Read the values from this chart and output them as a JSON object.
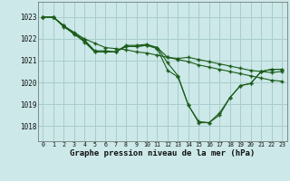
{
  "title": "Graphe pression niveau de la mer (hPa)",
  "bg_color": "#cce8e8",
  "grid_color": "#aacccc",
  "line_color": "#1a5c1a",
  "x_ticks": [
    0,
    1,
    2,
    3,
    4,
    5,
    6,
    7,
    8,
    9,
    10,
    11,
    12,
    13,
    14,
    15,
    16,
    17,
    18,
    19,
    20,
    21,
    22,
    23
  ],
  "y_ticks": [
    1018,
    1019,
    1020,
    1021,
    1022,
    1023
  ],
  "xlim": [
    -0.5,
    23.5
  ],
  "ylim": [
    1017.3,
    1023.7
  ],
  "line1_x": [
    0,
    1,
    2,
    3,
    4,
    5,
    6,
    7,
    8,
    9,
    10,
    11,
    12,
    13,
    14,
    15,
    16,
    17,
    18,
    19,
    20,
    21,
    22,
    23
  ],
  "line1_y": [
    1023.0,
    1023.0,
    1022.6,
    1022.3,
    1022.0,
    1021.8,
    1021.6,
    1021.55,
    1021.5,
    1021.4,
    1021.35,
    1021.25,
    1021.15,
    1021.05,
    1020.95,
    1020.8,
    1020.7,
    1020.6,
    1020.5,
    1020.4,
    1020.3,
    1020.2,
    1020.1,
    1020.05
  ],
  "line2_x": [
    0,
    1,
    2,
    3,
    4,
    5,
    6,
    7,
    8,
    9,
    10,
    11,
    12,
    13,
    14,
    15,
    16,
    17,
    18,
    19,
    20,
    21,
    22,
    23
  ],
  "line2_y": [
    1023.0,
    1023.0,
    1022.55,
    1022.25,
    1021.95,
    1021.45,
    1021.45,
    1021.4,
    1021.7,
    1021.7,
    1021.75,
    1021.6,
    1021.15,
    1021.1,
    1021.15,
    1021.05,
    1020.95,
    1020.85,
    1020.75,
    1020.65,
    1020.55,
    1020.5,
    1020.45,
    1020.5
  ],
  "line3_x": [
    0,
    1,
    2,
    3,
    4,
    5,
    6,
    7,
    8,
    9,
    10,
    11,
    12,
    13,
    14,
    15,
    16,
    17,
    18,
    19,
    20,
    21,
    22,
    23
  ],
  "line3_y": [
    1023.0,
    1023.0,
    1022.6,
    1022.25,
    1021.85,
    1021.4,
    1021.4,
    1021.4,
    1021.65,
    1021.65,
    1021.7,
    1021.6,
    1020.9,
    1020.3,
    1018.95,
    1018.2,
    1018.15,
    1018.5,
    1019.3,
    1019.85,
    1019.95,
    1020.5,
    1020.6,
    1020.6
  ],
  "line4_x": [
    0,
    1,
    2,
    3,
    4,
    5,
    6,
    7,
    8,
    9,
    10,
    11,
    12,
    13,
    14,
    15,
    16,
    17,
    18,
    19,
    20,
    21,
    22,
    23
  ],
  "line4_y": [
    1023.0,
    1023.0,
    1022.6,
    1022.2,
    1021.9,
    1021.4,
    1021.4,
    1021.4,
    1021.65,
    1021.65,
    1021.7,
    1021.55,
    1020.55,
    1020.25,
    1018.95,
    1018.15,
    1018.15,
    1018.6,
    1019.3,
    1019.85,
    1019.95,
    1020.5,
    1020.6,
    1020.6
  ]
}
